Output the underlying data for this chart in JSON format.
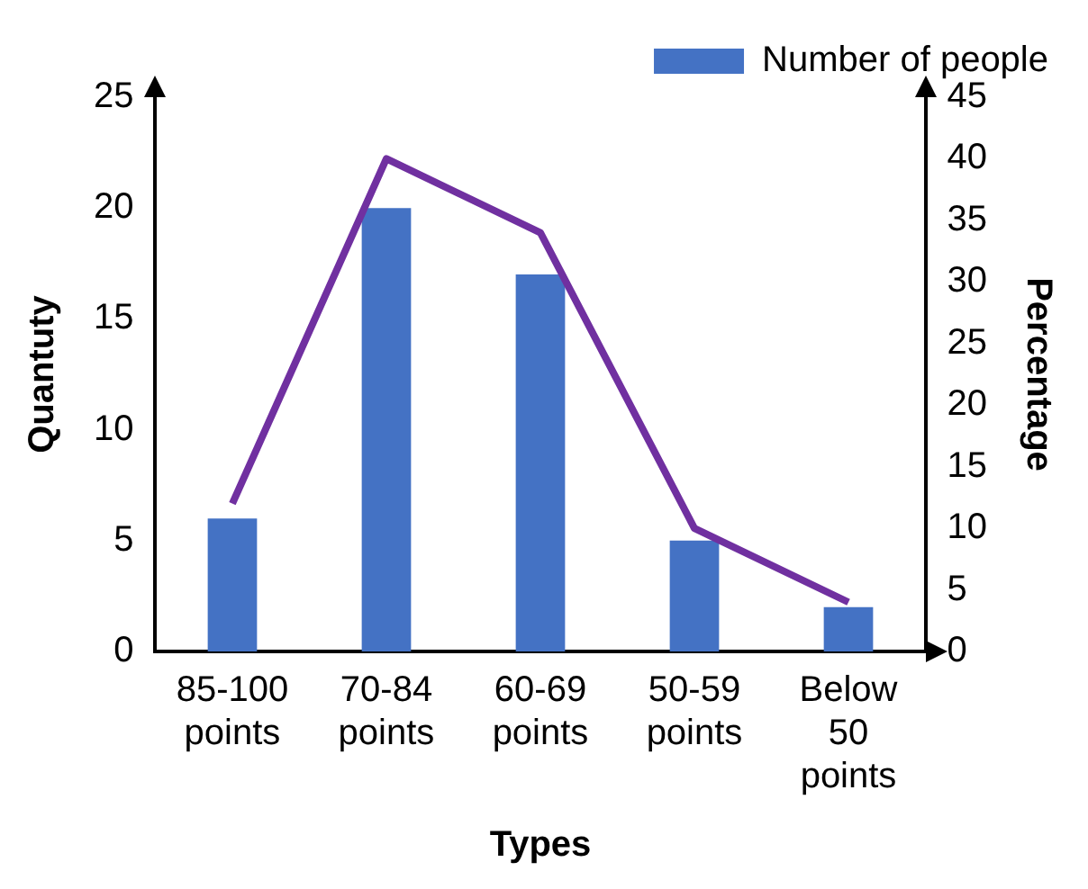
{
  "chart_data": {
    "type": "bar",
    "xlabel": "Types",
    "ylabel": "Quantuty",
    "y2label": "Percentage",
    "categories": [
      "85-100 points",
      "70-84 points",
      "60-69 points",
      "50-59 points",
      "Below 50 points"
    ],
    "series": [
      {
        "name": "Number of people",
        "color": "#4472c4",
        "values": [
          6,
          20,
          17,
          5,
          2
        ]
      },
      {
        "type": "line",
        "axis": "y2",
        "color": "#7030a0",
        "values": [
          12,
          40,
          34,
          10,
          4
        ]
      }
    ],
    "ylim": [
      0,
      25
    ],
    "yticks": [
      0,
      5,
      10,
      15,
      20,
      25
    ],
    "y2lim": [
      0,
      45
    ],
    "y2ticks": [
      0,
      5,
      10,
      15,
      20,
      25,
      30,
      35,
      40,
      45
    ],
    "grid": false,
    "legend": "top right",
    "marker": "none",
    "line_style": "solid"
  }
}
